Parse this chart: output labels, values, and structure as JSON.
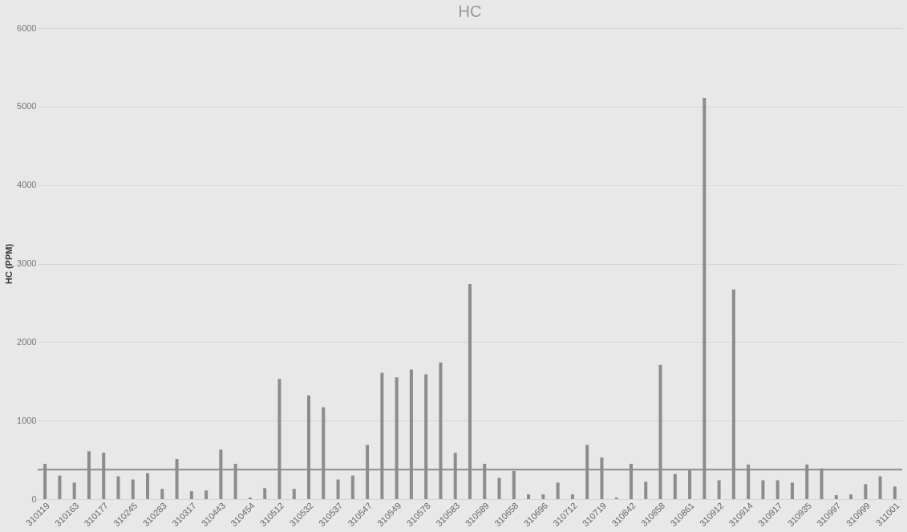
{
  "chart_data": {
    "type": "bar",
    "title": "HC",
    "ylabel": "HC (PPM)",
    "categories": [
      "310119",
      null,
      "310163",
      null,
      "310177",
      null,
      "310245",
      null,
      "310283",
      null,
      "310317",
      null,
      "310443",
      null,
      "310454",
      null,
      "310512",
      null,
      "310532",
      null,
      "310537",
      null,
      "310547",
      null,
      "310549",
      null,
      "310578",
      null,
      "310583",
      null,
      "310589",
      null,
      "310658",
      null,
      "310696",
      null,
      "310712",
      null,
      "310719",
      null,
      "310842",
      null,
      "310858",
      null,
      "310861",
      null,
      "310912",
      null,
      "310914",
      null,
      "310917",
      null,
      "310935",
      null,
      "310997",
      null,
      "310999",
      null,
      "311001"
    ],
    "values": [
      450,
      300,
      210,
      610,
      590,
      290,
      250,
      330,
      130,
      510,
      100,
      110,
      630,
      450,
      20,
      140,
      1530,
      130,
      1320,
      1170,
      250,
      300,
      690,
      1610,
      1550,
      1650,
      1590,
      1740,
      590,
      2740,
      450,
      270,
      360,
      60,
      60,
      210,
      60,
      690,
      530,
      20,
      450,
      220,
      1710,
      320,
      370,
      5110,
      240,
      2670,
      440,
      240,
      240,
      210,
      440,
      390,
      50,
      60,
      190,
      290,
      160
    ],
    "color": "#8c8c8c",
    "ylim": [
      0,
      6000
    ],
    "yticks": [
      0,
      1000,
      2000,
      3000,
      4000,
      5000,
      6000
    ],
    "grid": "y",
    "ref_lines": [
      {
        "axis": "y",
        "value": 375,
        "label": null,
        "color": "#8c8c8c"
      }
    ]
  }
}
